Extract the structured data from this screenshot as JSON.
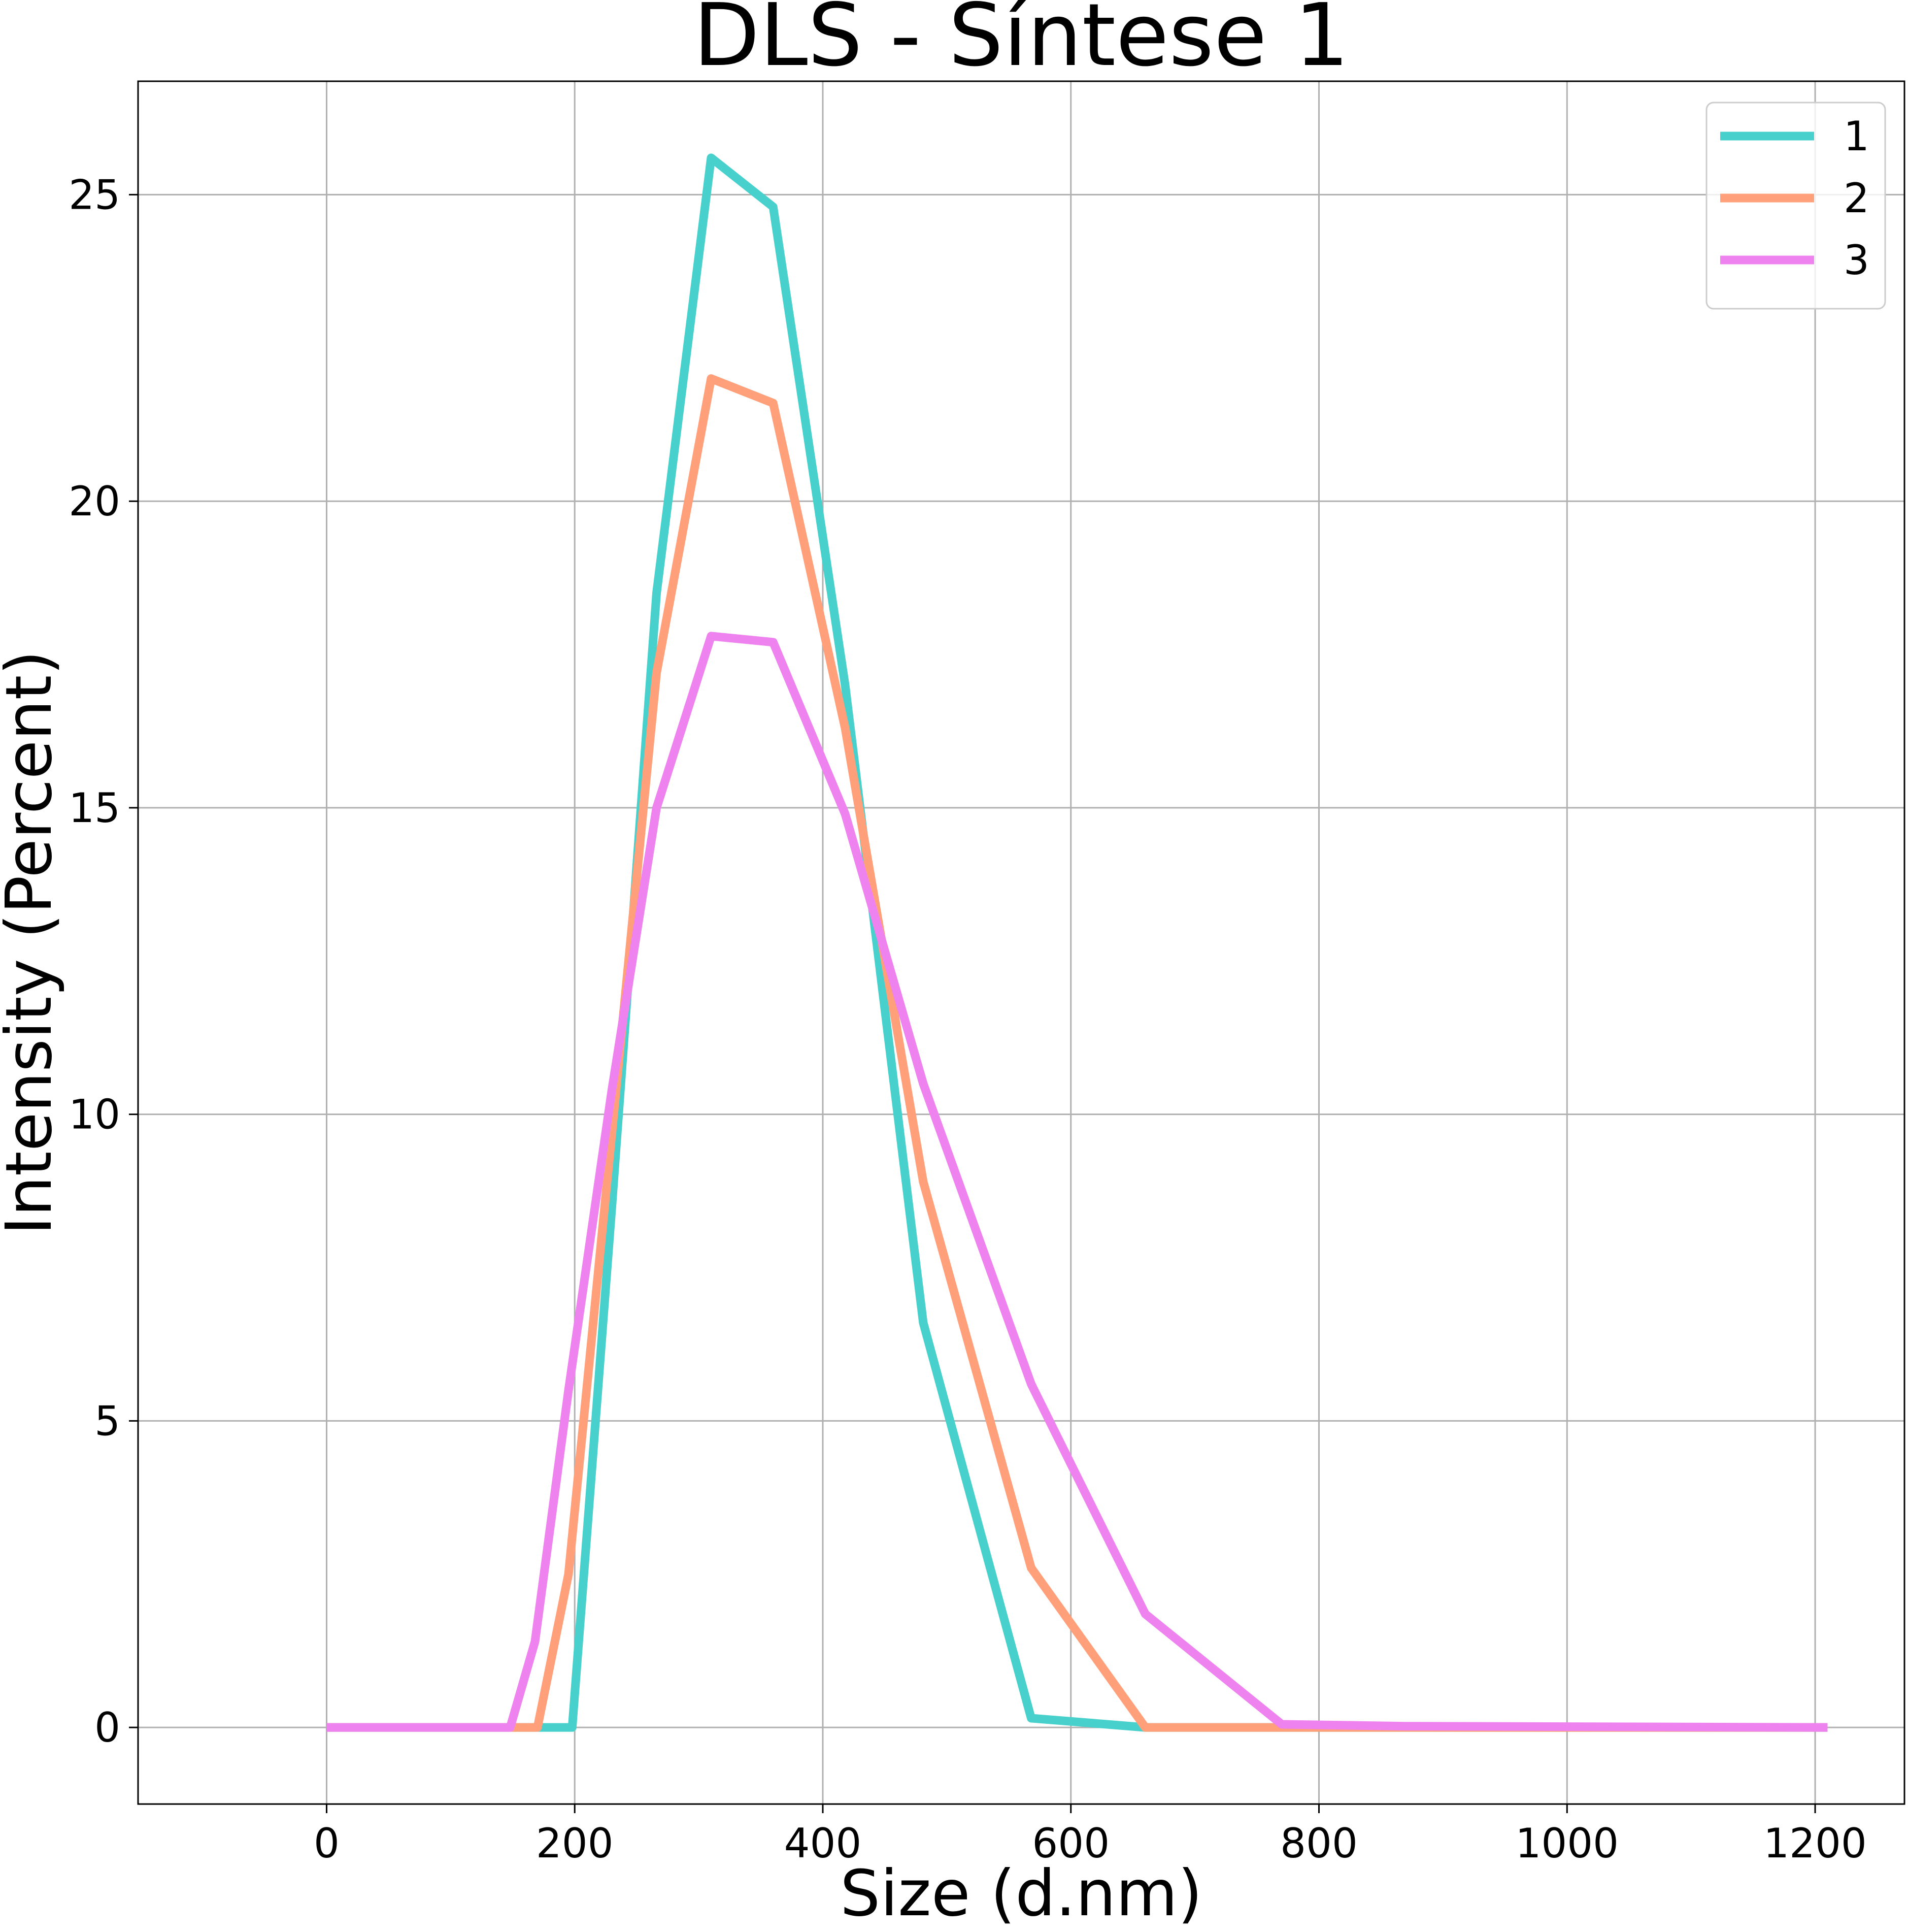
{
  "chart_data": {
    "type": "line",
    "title": "DLS - Síntese 1",
    "xlabel": "Size (d.nm)",
    "ylabel": "Intensity (Percent)",
    "xlim": [
      -152,
      1272
    ],
    "ylim": [
      -1.25,
      26.85
    ],
    "xticks": [
      0,
      200,
      400,
      600,
      800,
      1000,
      1200
    ],
    "yticks": [
      0,
      5,
      10,
      15,
      20,
      25
    ],
    "grid": true,
    "legend_position": "top-right",
    "series": [
      {
        "name": "1",
        "color": "#48d1cc",
        "x": [
          0,
          148,
          170,
          198,
          230,
          266,
          310,
          360,
          418,
          481,
          568,
          660,
          770,
          870,
          1210
        ],
        "y": [
          0,
          0,
          0,
          0,
          8.5,
          18.5,
          25.6,
          24.8,
          17.0,
          6.6,
          0.15,
          0,
          0,
          0,
          0
        ]
      },
      {
        "name": "2",
        "color": "#ffa07a",
        "x": [
          0,
          148,
          170,
          195,
          230,
          266,
          310,
          360,
          418,
          481,
          568,
          660,
          770,
          870,
          1210
        ],
        "y": [
          0,
          0,
          0,
          2.5,
          9.7,
          17.2,
          22.0,
          21.6,
          16.3,
          8.9,
          2.6,
          0,
          0,
          0,
          0
        ]
      },
      {
        "name": "3",
        "color": "#ee82ee",
        "x": [
          0,
          148,
          168,
          195,
          230,
          266,
          310,
          360,
          418,
          481,
          568,
          660,
          770,
          870,
          1210
        ],
        "y": [
          0,
          0,
          1.4,
          5.5,
          10.4,
          15.0,
          17.8,
          17.7,
          14.9,
          10.5,
          5.6,
          1.85,
          0.05,
          0.02,
          0
        ]
      }
    ]
  }
}
